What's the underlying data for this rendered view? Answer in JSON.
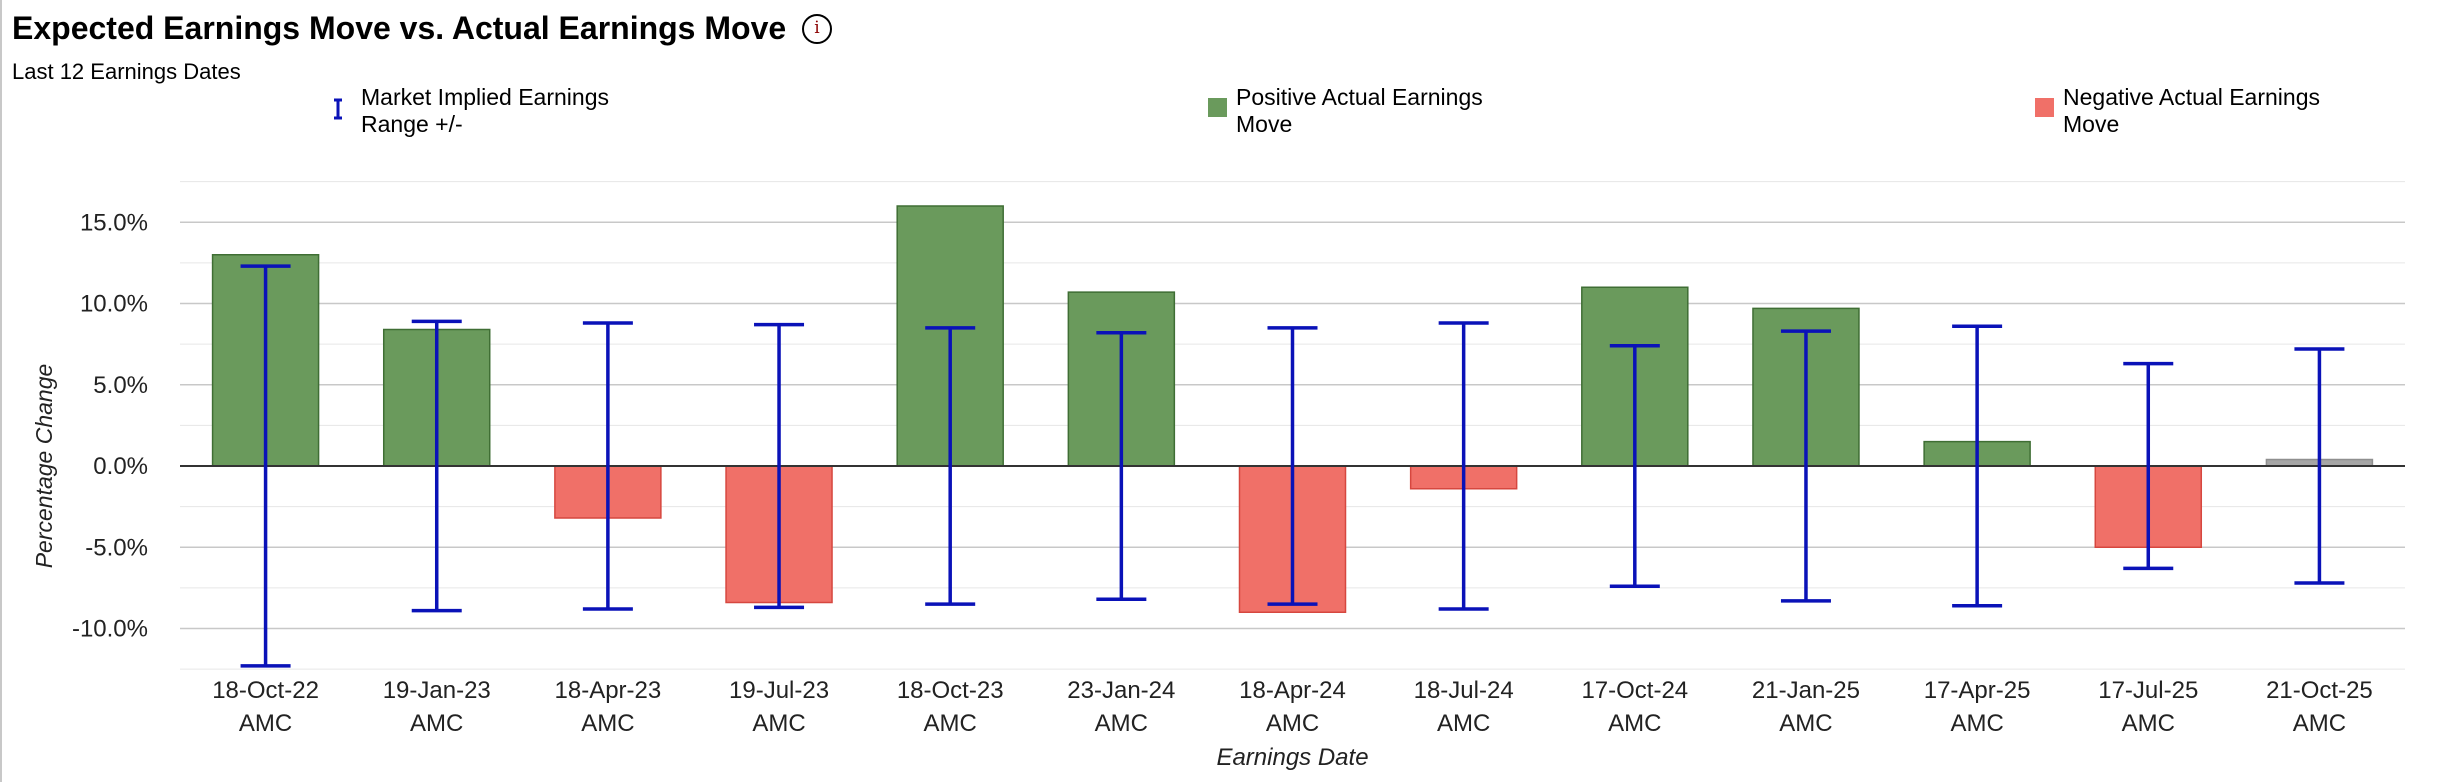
{
  "title": "Expected Earnings Move vs. Actual Earnings Move",
  "subtitle": "Last 12 Earnings Dates",
  "legend": {
    "range": "Market Implied Earnings Range +/-",
    "positive": "Positive Actual Earnings Move",
    "negative": "Negative Actual Earnings Move"
  },
  "colors": {
    "positive": "#6a9a5c",
    "positive_stroke": "#3f6e34",
    "negative": "#f07068",
    "negative_stroke": "#d6473f",
    "neutral": "#a6a6a6",
    "range": "#0a12b8",
    "grid": "#cfcfcf"
  },
  "chart_data": {
    "type": "bar",
    "title": "Expected Earnings Move vs. Actual Earnings Move",
    "subtitle": "Last 12 Earnings Dates",
    "xlabel": "Earnings Date",
    "ylabel": "Percentage Change",
    "ylim": [
      -12.5,
      17.5
    ],
    "yticks": [
      15,
      10,
      5,
      0,
      -5,
      -10
    ],
    "ytick_labels": [
      "15.0%",
      "10.0%",
      "5.0%",
      "0.0%",
      "-5.0%",
      "-10.0%"
    ],
    "categories": [
      {
        "date": "18-Oct-22",
        "session": "AMC"
      },
      {
        "date": "19-Jan-23",
        "session": "AMC"
      },
      {
        "date": "18-Apr-23",
        "session": "AMC"
      },
      {
        "date": "19-Jul-23",
        "session": "AMC"
      },
      {
        "date": "18-Oct-23",
        "session": "AMC"
      },
      {
        "date": "23-Jan-24",
        "session": "AMC"
      },
      {
        "date": "18-Apr-24",
        "session": "AMC"
      },
      {
        "date": "18-Jul-24",
        "session": "AMC"
      },
      {
        "date": "17-Oct-24",
        "session": "AMC"
      },
      {
        "date": "21-Jan-25",
        "session": "AMC"
      },
      {
        "date": "17-Apr-25",
        "session": "AMC"
      },
      {
        "date": "17-Jul-25",
        "session": "AMC"
      },
      {
        "date": "21-Oct-25",
        "session": "AMC"
      }
    ],
    "series": [
      {
        "name": "Actual Earnings Move",
        "values": [
          13.0,
          8.4,
          -3.2,
          -8.4,
          16.0,
          10.7,
          -9.0,
          -1.4,
          11.0,
          9.7,
          1.5,
          -5.0,
          0.4
        ]
      },
      {
        "name": "Market Implied Earnings Range +/-",
        "values": [
          12.3,
          8.9,
          8.8,
          8.7,
          8.5,
          8.2,
          8.5,
          8.8,
          7.4,
          8.3,
          8.6,
          6.3,
          7.2
        ]
      }
    ],
    "neutral_index": 12
  }
}
